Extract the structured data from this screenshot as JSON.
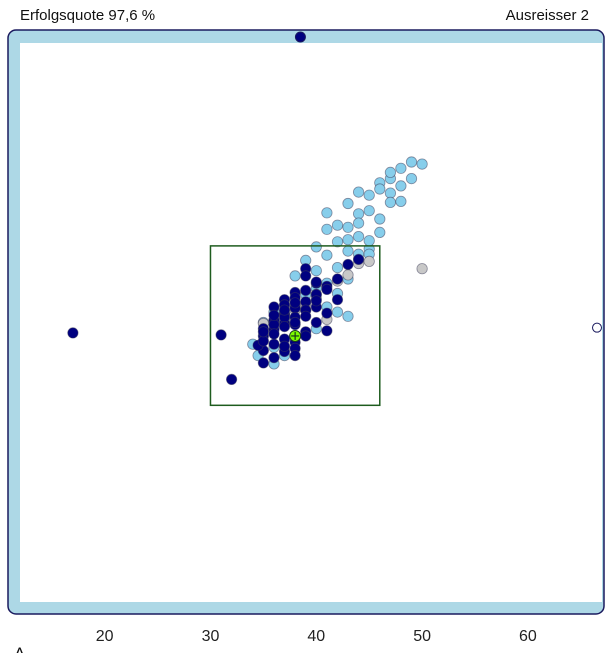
{
  "header": {
    "success_rate": "Erfolgsquote 97,6 %",
    "outliers": "Ausreisser 2"
  },
  "colors": {
    "frame_fill": "#add8e6",
    "frame_stroke": "#1a1a5e",
    "plot_bg": "#ffffff",
    "light_blue": "#87ceeb",
    "navy": "#000080",
    "gray": "#c8c8c8",
    "box": "#1e5c1e",
    "target": "#7cfc00"
  },
  "chart_data": {
    "type": "scatter",
    "title": "",
    "xlabel": "",
    "ylabel": "",
    "xlim": [
      12,
      67
    ],
    "ylim": [
      14,
      68
    ],
    "x_ticks": [
      20,
      30,
      40,
      50,
      60
    ],
    "x_tick_labels": [
      "20",
      "30",
      "40",
      "50",
      "60"
    ],
    "grid": false,
    "legend": "none",
    "box": {
      "x": [
        30,
        46
      ],
      "y": [
        33,
        48.4
      ]
    },
    "target": {
      "x": 38,
      "y": 39.7
    },
    "overflow_markers": [
      {
        "x": 38.5,
        "y": 68,
        "style": "filled"
      },
      {
        "x": 67,
        "y": 40.5,
        "style": "open"
      }
    ],
    "axis_marker": "Λ",
    "series": [
      {
        "color": "light_blue",
        "x": [
          49,
          50,
          48,
          47,
          49,
          46,
          48,
          47,
          45,
          44,
          46,
          43,
          47,
          45,
          44,
          42,
          41,
          43,
          46,
          44,
          42,
          40,
          45,
          43,
          41,
          39,
          44,
          42,
          40,
          38,
          43,
          41,
          40,
          39,
          42,
          44,
          46,
          41,
          43,
          45,
          40,
          38,
          36,
          37,
          42,
          40,
          35,
          39,
          41,
          36,
          37,
          34.5,
          36,
          34,
          43,
          39,
          47,
          48,
          44,
          45
        ],
        "y": [
          56.5,
          56.3,
          55.9,
          54.9,
          54.9,
          54.5,
          54.2,
          53.5,
          53.3,
          53.6,
          53.9,
          52.5,
          52.6,
          51.8,
          51.5,
          50.4,
          50.0,
          50.2,
          49.7,
          49.3,
          48.8,
          48.3,
          48.1,
          47.9,
          47.5,
          47.0,
          47.1,
          46.3,
          46.0,
          45.5,
          45.2,
          44.8,
          44.3,
          43.7,
          43.8,
          47.6,
          51.0,
          51.6,
          49.0,
          47.6,
          43.3,
          42.5,
          42.0,
          41.2,
          42.0,
          40.4,
          41.0,
          39.8,
          42.5,
          38.6,
          37.8,
          37.8,
          37.0,
          38.9,
          41.6,
          42.2,
          55.5,
          52.7,
          50.6,
          48.9
        ]
      },
      {
        "color": "gray",
        "x": [
          50,
          43,
          42,
          44,
          39,
          40,
          37,
          41,
          35,
          38,
          45,
          36
        ],
        "y": [
          46.2,
          45.6,
          45.0,
          46.7,
          42.8,
          43.7,
          41.8,
          41.3,
          40.9,
          42.2,
          46.9,
          41.2
        ]
      },
      {
        "color": "navy",
        "x": [
          17,
          31,
          32,
          39,
          44,
          43,
          42,
          41,
          40,
          39,
          38,
          37,
          36,
          40,
          39,
          38,
          37,
          36,
          35,
          38,
          37,
          36,
          35,
          39,
          38,
          37,
          36,
          35,
          38,
          37,
          36,
          35,
          34.5,
          37,
          38,
          39,
          40,
          41,
          42,
          39,
          38,
          37,
          36,
          35,
          40,
          41,
          38,
          36,
          37,
          39,
          40,
          37,
          36,
          35,
          39,
          38,
          41,
          37,
          40,
          38
        ],
        "y": [
          40.0,
          39.8,
          35.5,
          46.2,
          47.1,
          46.6,
          45.2,
          44.5,
          44.8,
          45.5,
          43.9,
          43.2,
          42.5,
          43.7,
          43.0,
          42.4,
          41.8,
          41.2,
          40.4,
          41.5,
          40.9,
          40.3,
          39.7,
          42.2,
          40.8,
          39.4,
          38.9,
          38.3,
          39.1,
          38.2,
          37.6,
          37.1,
          38.8,
          42.7,
          43.4,
          44.1,
          42.5,
          41.9,
          43.2,
          41.6,
          42.9,
          41.5,
          40.8,
          39.2,
          41.0,
          40.2,
          38.5,
          39.9,
          40.6,
          40.1,
          43.1,
          42.2,
          41.7,
          40.1,
          39.7,
          37.8,
          44.2,
          38.7,
          44.9,
          41.0
        ]
      }
    ]
  }
}
